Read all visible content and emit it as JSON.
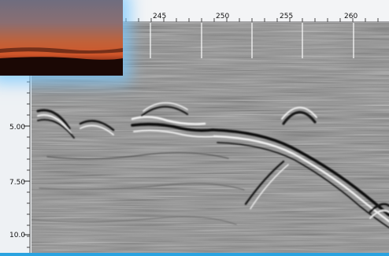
{
  "window": {
    "background": "#2aa3e0"
  },
  "top_ruler": {
    "ticks": [
      {
        "label": "245"
      },
      {
        "label": "250"
      },
      {
        "label": "255"
      },
      {
        "label": "260"
      }
    ]
  },
  "left_scale": {
    "ticks": [
      {
        "label": "5.00"
      },
      {
        "label": "7.50"
      },
      {
        "label": "10.0"
      }
    ]
  },
  "thumbnail": {
    "icon": "sunset-thumbnail-image",
    "sky_colors": [
      "#7b6a76",
      "#c8582a",
      "#2c0e08"
    ]
  },
  "radargram": {
    "icon": "gpr-profile-image",
    "background": "#8c8c8c"
  }
}
